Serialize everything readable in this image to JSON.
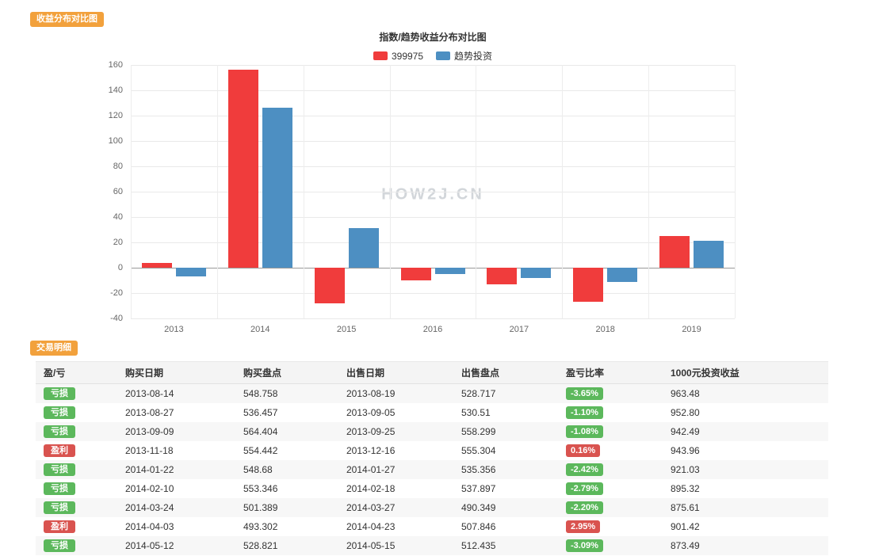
{
  "badges": {
    "chart_section": "收益分布对比图",
    "table_section": "交易明细"
  },
  "colors": {
    "section_badge": "#f2a13c",
    "loss_badge_green": "#5cb85c",
    "profit_badge_red": "#d9534f",
    "series_red": "#f03c3c",
    "series_blue": "#4d8fc2"
  },
  "chart_data": {
    "type": "bar",
    "title": "指数/趋势收益分布对比图",
    "watermark": "HOW2J.CN",
    "xlabel": "",
    "ylabel": "",
    "categories": [
      "2013",
      "2014",
      "2015",
      "2016",
      "2017",
      "2018",
      "2019"
    ],
    "series": [
      {
        "name": "399975",
        "slug": "399975",
        "color": "#f03c3c",
        "values": [
          4,
          156,
          -28,
          -10,
          -13,
          -27,
          25
        ]
      },
      {
        "name": "趋势投资",
        "slug": "trend-invest",
        "color": "#4d8fc2",
        "values": [
          -7,
          126,
          31,
          -5,
          -8,
          -11,
          21
        ]
      }
    ],
    "ylim": [
      -40,
      160
    ],
    "ytick_step": 20,
    "grid": true,
    "legend_position": "top"
  },
  "table": {
    "columns": [
      "盈/亏",
      "购买日期",
      "购买盘点",
      "出售日期",
      "出售盘点",
      "盈亏比率",
      "1000元投资收益"
    ],
    "rows": [
      {
        "result": "亏损",
        "result_type": "loss",
        "buy_date": "2013-08-14",
        "buy_point": "548.758",
        "sell_date": "2013-08-19",
        "sell_point": "528.717",
        "ratio": "-3.65%",
        "ratio_type": "loss",
        "income": "963.48"
      },
      {
        "result": "亏损",
        "result_type": "loss",
        "buy_date": "2013-08-27",
        "buy_point": "536.457",
        "sell_date": "2013-09-05",
        "sell_point": "530.51",
        "ratio": "-1.10%",
        "ratio_type": "loss",
        "income": "952.80"
      },
      {
        "result": "亏损",
        "result_type": "loss",
        "buy_date": "2013-09-09",
        "buy_point": "564.404",
        "sell_date": "2013-09-25",
        "sell_point": "558.299",
        "ratio": "-1.08%",
        "ratio_type": "loss",
        "income": "942.49"
      },
      {
        "result": "盈利",
        "result_type": "profit",
        "buy_date": "2013-11-18",
        "buy_point": "554.442",
        "sell_date": "2013-12-16",
        "sell_point": "555.304",
        "ratio": "0.16%",
        "ratio_type": "profit",
        "income": "943.96"
      },
      {
        "result": "亏损",
        "result_type": "loss",
        "buy_date": "2014-01-22",
        "buy_point": "548.68",
        "sell_date": "2014-01-27",
        "sell_point": "535.356",
        "ratio": "-2.42%",
        "ratio_type": "loss",
        "income": "921.03"
      },
      {
        "result": "亏损",
        "result_type": "loss",
        "buy_date": "2014-02-10",
        "buy_point": "553.346",
        "sell_date": "2014-02-18",
        "sell_point": "537.897",
        "ratio": "-2.79%",
        "ratio_type": "loss",
        "income": "895.32"
      },
      {
        "result": "亏损",
        "result_type": "loss",
        "buy_date": "2014-03-24",
        "buy_point": "501.389",
        "sell_date": "2014-03-27",
        "sell_point": "490.349",
        "ratio": "-2.20%",
        "ratio_type": "loss",
        "income": "875.61"
      },
      {
        "result": "盈利",
        "result_type": "profit",
        "buy_date": "2014-04-03",
        "buy_point": "493.302",
        "sell_date": "2014-04-23",
        "sell_point": "507.846",
        "ratio": "2.95%",
        "ratio_type": "profit",
        "income": "901.42"
      },
      {
        "result": "亏损",
        "result_type": "loss",
        "buy_date": "2014-05-12",
        "buy_point": "528.821",
        "sell_date": "2014-05-15",
        "sell_point": "512.435",
        "ratio": "-3.09%",
        "ratio_type": "loss",
        "income": "873.49"
      }
    ]
  }
}
